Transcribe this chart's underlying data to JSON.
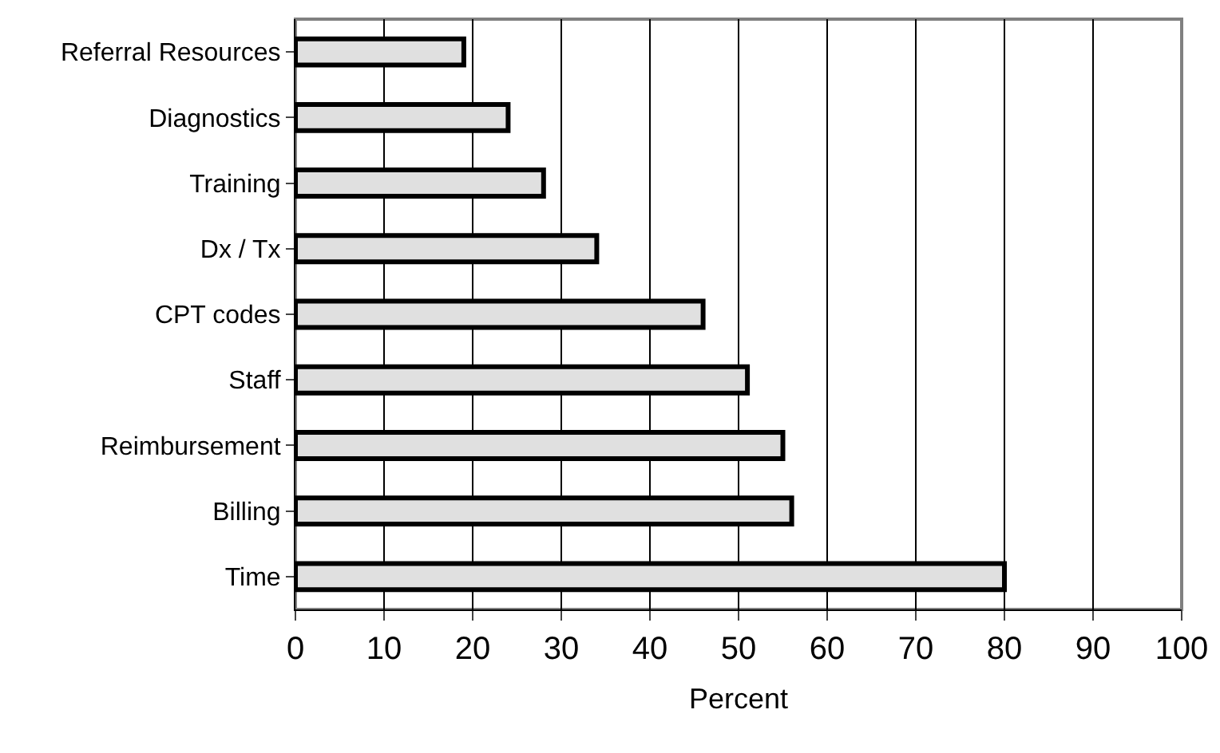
{
  "chart_data": {
    "type": "bar",
    "orientation": "horizontal",
    "xlabel": "Percent",
    "categories": [
      "Referral Resources",
      "Diagnostics",
      "Training",
      "Dx / Tx",
      "CPT codes",
      "Staff",
      "Reimbursement",
      "Billing",
      "Time"
    ],
    "values": [
      19,
      24,
      28,
      34,
      46,
      51,
      55,
      56,
      80
    ],
    "color": "#e0e0e0",
    "xlim": [
      0,
      100
    ],
    "xticks": [
      0,
      10,
      20,
      30,
      40,
      50,
      60,
      70,
      80,
      90,
      100
    ],
    "grid": "x"
  }
}
